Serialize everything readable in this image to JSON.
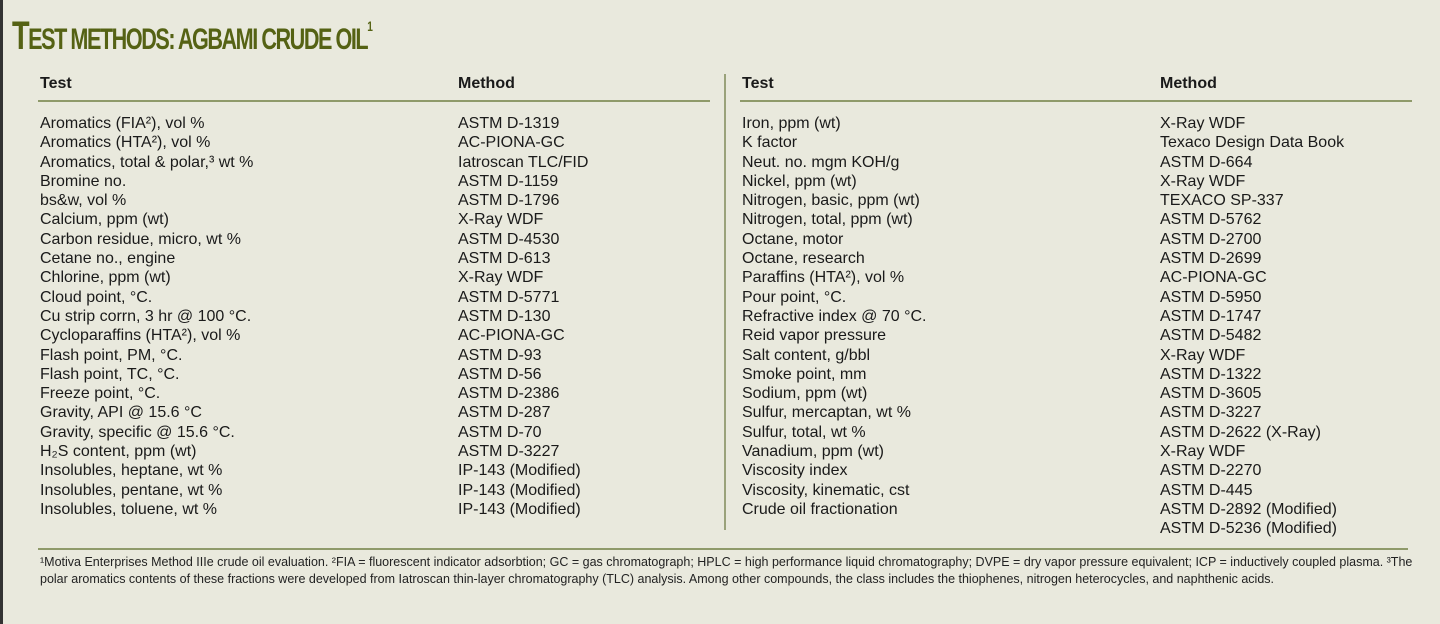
{
  "title": {
    "first": "T",
    "rest": "EST METHODS: AGBAMI CRUDE OIL",
    "sup": "1"
  },
  "headers": {
    "test": "Test",
    "method": "Method"
  },
  "left": [
    [
      "Aromatics (FIA²), vol %",
      "ASTM D-1319"
    ],
    [
      "Aromatics (HTA²), vol %",
      "AC-PIONA-GC"
    ],
    [
      "Aromatics, total & polar,³ wt %",
      "Iatroscan TLC/FID"
    ],
    [
      "Bromine no.",
      "ASTM D-1159"
    ],
    [
      "bs&w, vol %",
      "ASTM D-1796"
    ],
    [
      "Calcium, ppm (wt)",
      "X-Ray WDF"
    ],
    [
      "Carbon residue, micro, wt %",
      "ASTM D-4530"
    ],
    [
      "Cetane no., engine",
      "ASTM D-613"
    ],
    [
      "Chlorine,  ppm (wt)",
      "X-Ray WDF"
    ],
    [
      "Cloud point, °C.",
      "ASTM D-5771"
    ],
    [
      "Cu strip corrn, 3 hr @ 100 °C.",
      "ASTM D-130"
    ],
    [
      "Cycloparaffins (HTA²), vol %",
      "AC-PIONA-GC"
    ],
    [
      "Flash point, PM, °C.",
      "ASTM D-93"
    ],
    [
      "Flash point, TC, °C.",
      "ASTM D-56"
    ],
    [
      "Freeze point, °C.",
      "ASTM D-2386"
    ],
    [
      "Gravity, API @ 15.6 °C",
      "ASTM D-287"
    ],
    [
      "Gravity, specific @ 15.6 °C.",
      "ASTM D-70"
    ],
    [
      "H₂S content, ppm (wt)",
      "ASTM D-3227"
    ],
    [
      "Insolubles, heptane, wt %",
      "IP-143 (Modified)"
    ],
    [
      "Insolubles, pentane, wt %",
      "IP-143 (Modified)"
    ],
    [
      "Insolubles, toluene, wt %",
      "IP-143 (Modified)"
    ]
  ],
  "right": [
    [
      "Iron, ppm (wt)",
      "X-Ray WDF"
    ],
    [
      "K factor",
      "Texaco Design Data Book"
    ],
    [
      "Neut. no. mgm KOH/g",
      "ASTM D-664"
    ],
    [
      "Nickel, ppm (wt)",
      "X-Ray WDF"
    ],
    [
      "Nitrogen, basic, ppm (wt)",
      "TEXACO SP-337"
    ],
    [
      "Nitrogen, total, ppm (wt)",
      "ASTM D-5762"
    ],
    [
      "Octane, motor",
      "ASTM D-2700"
    ],
    [
      "Octane, research",
      "ASTM D-2699"
    ],
    [
      "Paraffins (HTA²), vol %",
      "AC-PIONA-GC"
    ],
    [
      "Pour point, °C.",
      "ASTM D-5950"
    ],
    [
      "Refractive index @ 70 °C.",
      "ASTM D-1747"
    ],
    [
      "Reid vapor pressure",
      "ASTM D-5482"
    ],
    [
      "Salt content, g/bbl",
      "X-Ray WDF"
    ],
    [
      "Smoke point, mm",
      "ASTM D-1322"
    ],
    [
      "Sodium, ppm (wt)",
      "ASTM D-3605"
    ],
    [
      "Sulfur, mercaptan, wt %",
      "ASTM D-3227"
    ],
    [
      "Sulfur, total, wt %",
      "ASTM D-2622 (X-Ray)"
    ],
    [
      "Vanadium, ppm (wt)",
      "X-Ray WDF"
    ],
    [
      "Viscosity index",
      "ASTM D-2270"
    ],
    [
      "Viscosity, kinematic, cst",
      "ASTM D-445"
    ],
    [
      "Crude oil fractionation",
      "ASTM D-2892 (Modified)"
    ],
    [
      "",
      "ASTM D-5236 (Modified)"
    ]
  ],
  "footnote": "¹Motiva Enterprises Method IIIe crude oil evaluation. ²FIA = fluorescent indicator adsorbtion; GC = gas chromatograph; HPLC = high performance liquid chromatography; DVPE = dry vapor pressure equivalent; ICP = inductively coupled plasma. ³The polar aromatics contents of these fractions were developed from Iatroscan thin-layer chromatography (TLC) analysis. Among other compounds, the class includes the thiophenes, nitrogen heterocycles, and naphthenic acids.",
  "colors": {
    "title": "#556214",
    "rule": "#8f9a6a",
    "background": "#e9e9dd"
  }
}
